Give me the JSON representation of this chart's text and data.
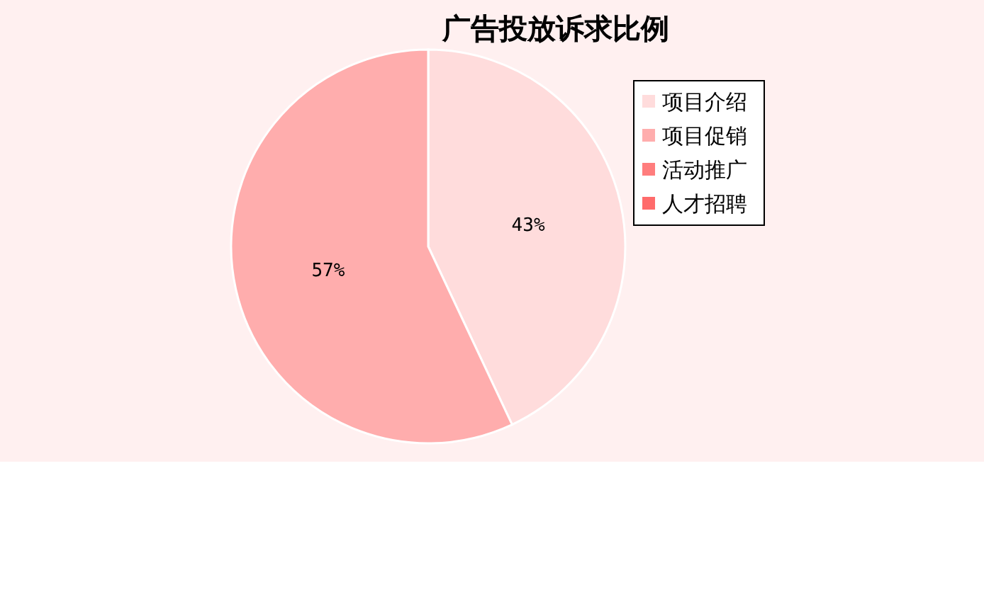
{
  "chart_data": {
    "type": "pie",
    "title": "广告投放诉求比例",
    "categories": [
      "项目介绍",
      "项目促销",
      "活动推广",
      "人才招聘"
    ],
    "values": [
      43,
      57,
      0,
      0
    ],
    "colors": [
      "#ffdcdc",
      "#ffadad",
      "#ff7d7d",
      "#ff6b6b"
    ],
    "value_labels": [
      "43%",
      "57%",
      null,
      null
    ],
    "legend": "top right"
  }
}
